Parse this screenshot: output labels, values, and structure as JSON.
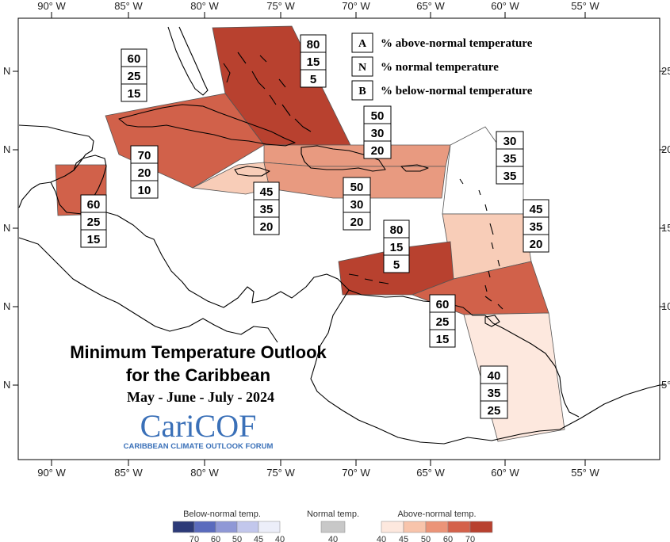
{
  "map": {
    "title_line1": "Minimum Temperature Outlook",
    "title_line2": "for the Caribbean",
    "period": "May - June - July - 2024",
    "lon_labels": [
      "90° W",
      "85° W",
      "80° W",
      "75° W",
      "70° W",
      "65° W",
      "60° W",
      "55° W"
    ],
    "lat_labels_left": [
      "N",
      "N",
      "N",
      "N",
      "N"
    ],
    "lat_labels_right": [
      "25°",
      "20°",
      "15°",
      "10°",
      "5°"
    ]
  },
  "key": [
    {
      "letter": "A",
      "text": "% above-normal temperature"
    },
    {
      "letter": "N",
      "text": "% normal temperature"
    },
    {
      "letter": "B",
      "text": "% below-normal temperature"
    }
  ],
  "regions": [
    {
      "id": "bahamas",
      "A": "80",
      "N": "15",
      "B": "5",
      "color": "#b8412f"
    },
    {
      "id": "cuba",
      "A": "60",
      "N": "25",
      "B": "15",
      "color": "#d1614a"
    },
    {
      "id": "hispaniola-north",
      "A": "50",
      "N": "30",
      "B": "20",
      "color": "#e89a80"
    },
    {
      "id": "northeast-atlantic",
      "A": "30",
      "N": "35",
      "B": "35",
      "color": "#ffffff"
    },
    {
      "id": "cayman",
      "A": "70",
      "N": "20",
      "B": "10",
      "color": "#c95240"
    },
    {
      "id": "jamaica",
      "A": "45",
      "N": "35",
      "B": "20",
      "color": "#f8cdb8"
    },
    {
      "id": "hispaniola-south",
      "A": "50",
      "N": "30",
      "B": "20",
      "color": "#e89a80"
    },
    {
      "id": "belize",
      "A": "60",
      "N": "25",
      "B": "15",
      "color": "#d1614a"
    },
    {
      "id": "lesser-antilles",
      "A": "45",
      "N": "35",
      "B": "20",
      "color": "#f8cdb8"
    },
    {
      "id": "abc-islands",
      "A": "80",
      "N": "15",
      "B": "5",
      "color": "#b8412f"
    },
    {
      "id": "trinidad",
      "A": "60",
      "N": "25",
      "B": "15",
      "color": "#d1614a"
    },
    {
      "id": "guianas",
      "A": "40",
      "N": "35",
      "B": "25",
      "color": "#fde8de"
    }
  ],
  "logo": {
    "name": "CariCOF",
    "subtitle": "CARIBBEAN CLIMATE OUTLOOK FORUM"
  },
  "colorbar": {
    "below": {
      "title": "Below-normal temp.",
      "ticks": [
        "70",
        "60",
        "50",
        "45",
        "40"
      ],
      "colors": [
        "#2c3a78",
        "#5a6bbd",
        "#8f98d6",
        "#c2c7ec",
        "#eceef9"
      ]
    },
    "normal": {
      "title": "Normal temp.",
      "ticks": [
        "40"
      ],
      "colors": [
        "#c8c8c8"
      ]
    },
    "above": {
      "title": "Above-normal temp.",
      "ticks": [
        "40",
        "45",
        "50",
        "60",
        "70"
      ],
      "colors": [
        "#fde8de",
        "#f8c4ab",
        "#eb9478",
        "#d4614a",
        "#b8412f"
      ]
    }
  }
}
